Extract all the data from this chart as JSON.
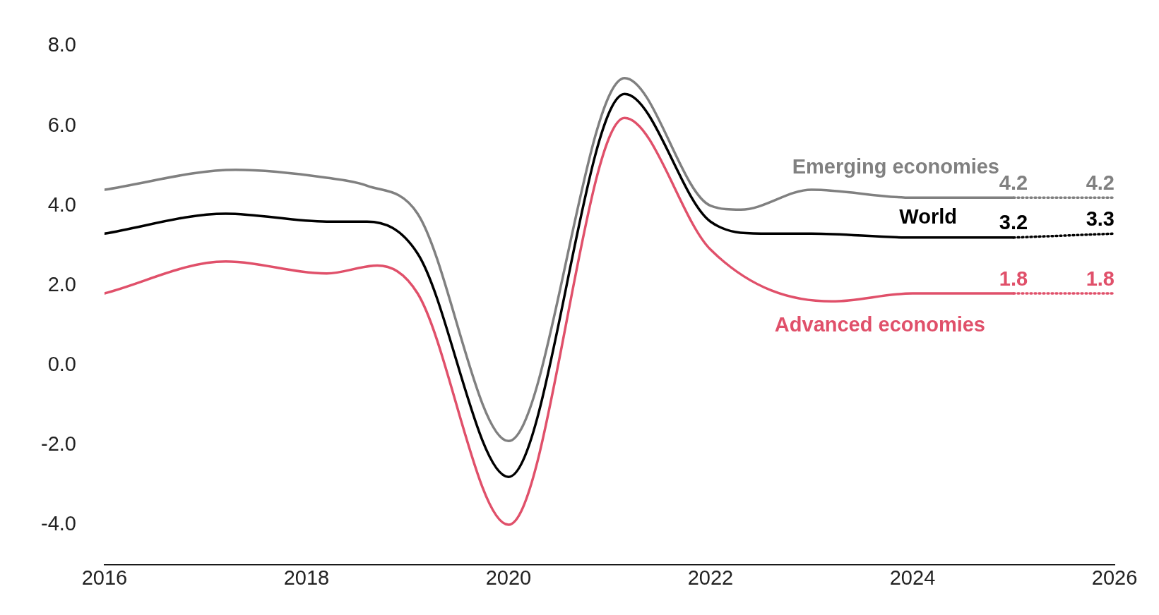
{
  "chart_data": {
    "type": "line",
    "xlim": [
      2016,
      2026
    ],
    "xticks": [
      2016,
      2018,
      2020,
      2022,
      2024,
      2026
    ],
    "ylim": [
      -5,
      8
    ],
    "yticks": [
      {
        "value": -4,
        "label": "-4.0"
      },
      {
        "value": -2,
        "label": "-2.0"
      },
      {
        "value": 0,
        "label": "0.0"
      },
      {
        "value": 2,
        "label": "2.0"
      },
      {
        "value": 4,
        "label": "4.0"
      },
      {
        "value": 6,
        "label": "6.0"
      },
      {
        "value": 8,
        "label": "8.0"
      }
    ],
    "grid": false,
    "legend": false,
    "marker": "none",
    "series": [
      {
        "name": "Emerging economies",
        "color": "#808080",
        "line_style": "solid",
        "x": [
          2016,
          2017.3,
          2018.2,
          2018.6,
          2019.1,
          2020,
          2021.15,
          2022,
          2022.3,
          2023,
          2024,
          2025
        ],
        "values": [
          4.4,
          4.9,
          4.7,
          4.5,
          3.8,
          -1.9,
          7.2,
          4.0,
          3.9,
          4.4,
          4.2,
          4.2
        ]
      },
      {
        "color": "#808080",
        "line_style": "dotted",
        "x": [
          2025,
          2026
        ],
        "values": [
          4.2,
          4.2
        ],
        "value_labels": [
          "4.2",
          "4.2"
        ]
      },
      {
        "name": "World",
        "color": "#000000",
        "line_style": "solid",
        "x": [
          2016,
          2017.2,
          2018.2,
          2018.6,
          2019.1,
          2020,
          2021.15,
          2022,
          2022.5,
          2023,
          2024,
          2025
        ],
        "values": [
          3.3,
          3.8,
          3.6,
          3.6,
          2.8,
          -2.8,
          6.8,
          3.6,
          3.3,
          3.3,
          3.2,
          3.2
        ]
      },
      {
        "color": "#000000",
        "line_style": "dotted",
        "x": [
          2025,
          2026
        ],
        "values": [
          3.2,
          3.3
        ],
        "value_labels": [
          "3.2",
          "3.3"
        ]
      },
      {
        "name": "Advanced economies",
        "color": "#e0506a",
        "line_style": "solid",
        "x": [
          2016,
          2017.2,
          2018.2,
          2018.7,
          2019.1,
          2020,
          2021.15,
          2022,
          2023.2,
          2024,
          2025
        ],
        "values": [
          1.8,
          2.6,
          2.3,
          2.5,
          1.8,
          -4.0,
          6.2,
          2.9,
          1.6,
          1.8,
          1.8
        ]
      },
      {
        "color": "#e0506a",
        "line_style": "dotted",
        "x": [
          2025,
          2026
        ],
        "values": [
          1.8,
          1.8
        ],
        "value_labels": [
          "1.8",
          "1.8"
        ]
      }
    ]
  }
}
